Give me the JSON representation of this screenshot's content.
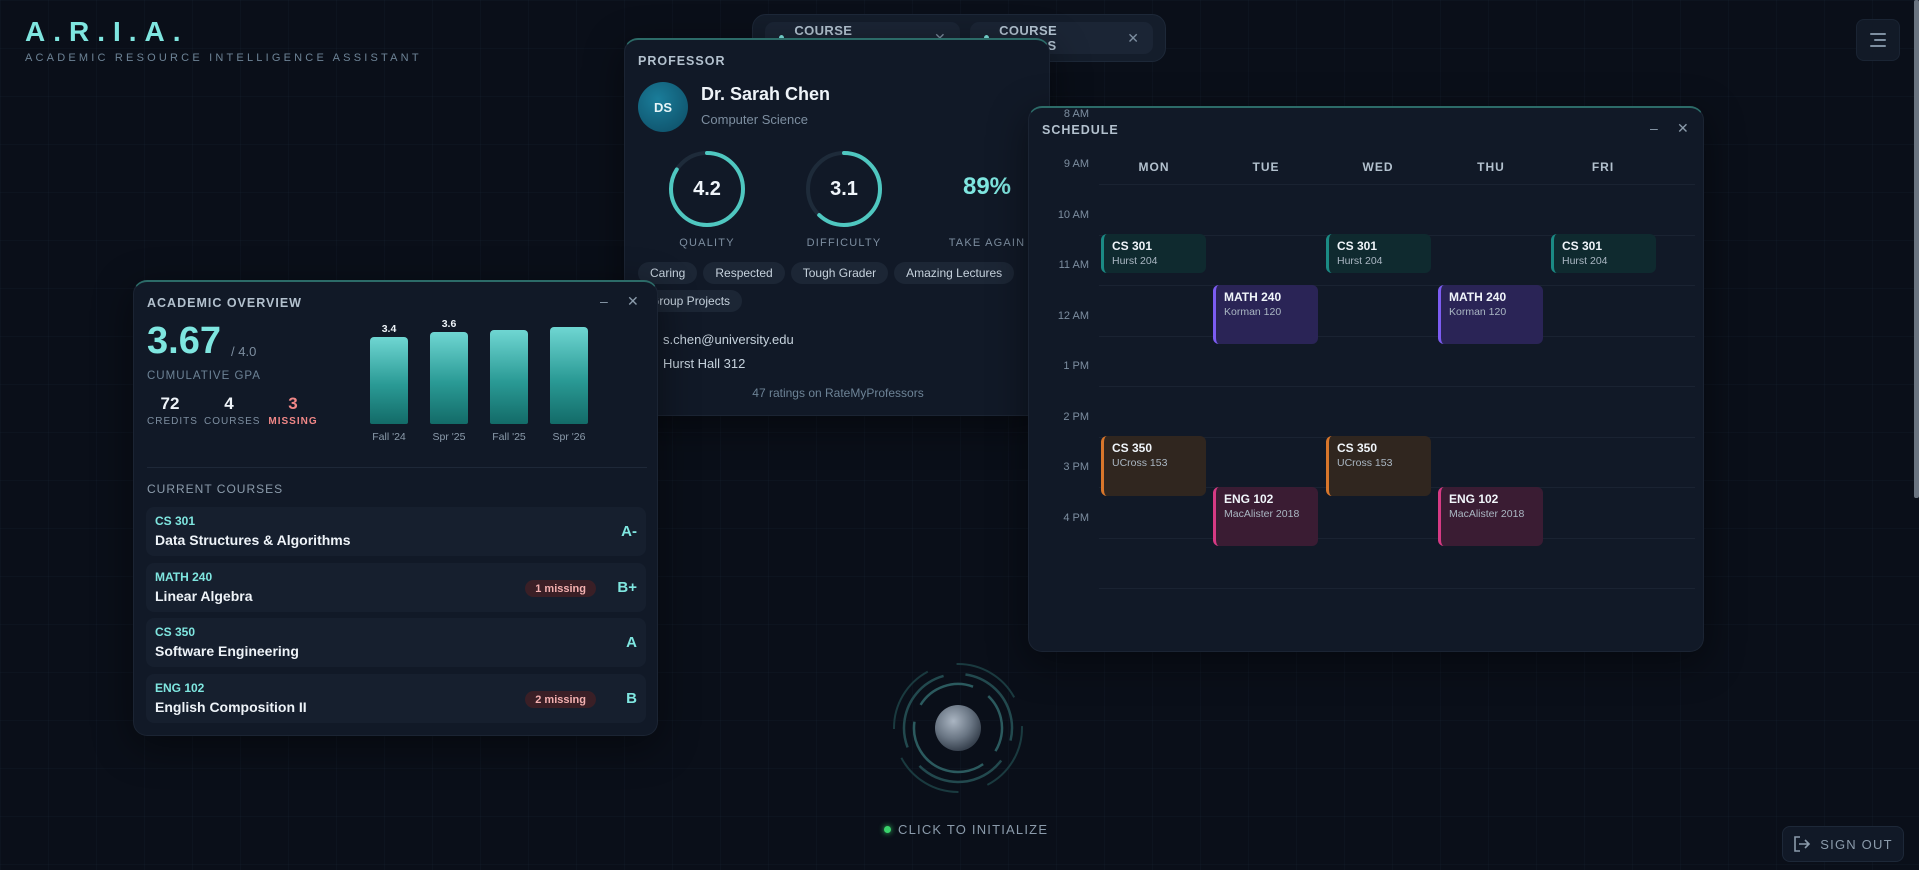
{
  "brand": {
    "title": "A.R.I.A.",
    "subtitle": "ACADEMIC RESOURCE INTELLIGENCE ASSISTANT"
  },
  "tabs": [
    {
      "label": "COURSE ROADMAP"
    },
    {
      "label": "COURSE DETAILS"
    }
  ],
  "professor": {
    "panel_title": "PROFESSOR",
    "initials": "DS",
    "name": "Dr. Sarah Chen",
    "department": "Computer Science",
    "quality": {
      "value": "4.2",
      "label": "QUALITY",
      "fraction": 0.84
    },
    "difficulty": {
      "value": "3.1",
      "label": "DIFFICULTY",
      "fraction": 0.62
    },
    "take_again": {
      "value": "89%",
      "label": "TAKE AGAIN"
    },
    "tags": [
      "Caring",
      "Respected",
      "Tough Grader",
      "Amazing Lectures",
      "Group Projects"
    ],
    "email": "s.chen@university.edu",
    "office": "Hurst Hall 312",
    "ratings_note": "47 ratings on RateMyProfessors"
  },
  "schedule": {
    "panel_title": "SCHEDULE",
    "days": [
      "MON",
      "TUE",
      "WED",
      "THU",
      "FRI"
    ],
    "times": [
      "8 AM",
      "9 AM",
      "10 AM",
      "11 AM",
      "12 AM",
      "1 PM",
      "2 PM",
      "3 PM",
      "4 PM"
    ],
    "events": [
      {
        "code": "CS 301",
        "room": "Hurst 204",
        "color": "teal",
        "day": 0,
        "start": 10,
        "duration": 0.8
      },
      {
        "code": "CS 301",
        "room": "Hurst 204",
        "color": "teal",
        "day": 2,
        "start": 10,
        "duration": 0.8
      },
      {
        "code": "CS 301",
        "room": "Hurst 204",
        "color": "teal",
        "day": 4,
        "start": 10,
        "duration": 0.8
      },
      {
        "code": "MATH 240",
        "room": "Korman 120",
        "color": "purple",
        "day": 1,
        "start": 11,
        "duration": 1.2
      },
      {
        "code": "MATH 240",
        "room": "Korman 120",
        "color": "purple",
        "day": 3,
        "start": 11,
        "duration": 1.2
      },
      {
        "code": "CS 350",
        "room": "UCross 153",
        "color": "orange",
        "day": 0,
        "start": 14,
        "duration": 1.2
      },
      {
        "code": "CS 350",
        "room": "UCross 153",
        "color": "orange",
        "day": 2,
        "start": 14,
        "duration": 1.2
      },
      {
        "code": "ENG 102",
        "room": "MacAlister 2018",
        "color": "pink",
        "day": 1,
        "start": 15,
        "duration": 1.2
      },
      {
        "code": "ENG 102",
        "room": "MacAlister 2018",
        "color": "pink",
        "day": 3,
        "start": 15,
        "duration": 1.2
      }
    ]
  },
  "overview": {
    "panel_title": "ACADEMIC OVERVIEW",
    "gpa": "3.67",
    "gpa_max": "/ 4.0",
    "gpa_label": "CUMULATIVE GPA",
    "stats": [
      {
        "value": "72",
        "label": "CREDITS"
      },
      {
        "value": "4",
        "label": "COURSES"
      },
      {
        "value": "3",
        "label": "MISSING"
      }
    ],
    "chart_data": {
      "type": "bar",
      "categories": [
        "Fall '24",
        "Spr '25",
        "Fall '25",
        "Spr '26"
      ],
      "values": [
        3.4,
        3.6,
        3.7,
        3.8
      ],
      "value_labels": [
        "3.4",
        "3.6",
        "",
        ""
      ],
      "ylim": [
        0,
        4.0
      ]
    },
    "section_label": "CURRENT COURSES",
    "courses": [
      {
        "code": "CS 301",
        "name": "Data Structures & Algorithms",
        "grade": "A-",
        "missing": ""
      },
      {
        "code": "MATH 240",
        "name": "Linear Algebra",
        "grade": "B+",
        "missing": "1 missing"
      },
      {
        "code": "CS 350",
        "name": "Software Engineering",
        "grade": "A",
        "missing": ""
      },
      {
        "code": "ENG 102",
        "name": "English Composition II",
        "grade": "B",
        "missing": "2 missing"
      }
    ]
  },
  "footer": {
    "initialize_label": "CLICK TO INITIALIZE",
    "signout_label": "SIGN OUT"
  }
}
